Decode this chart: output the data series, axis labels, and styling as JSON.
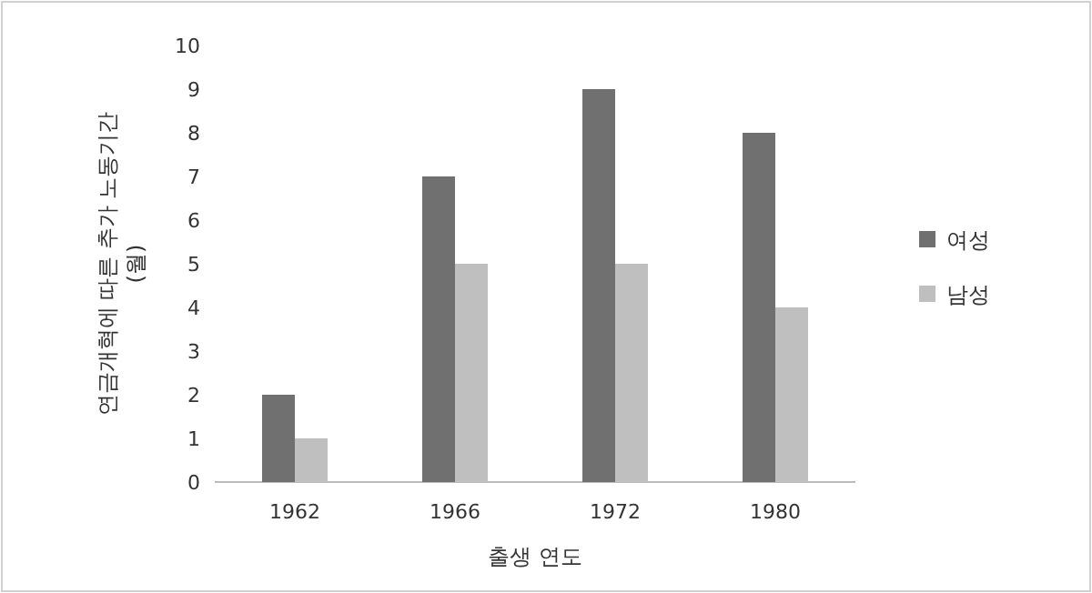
{
  "chart_data": {
    "type": "bar",
    "xlabel": "출생 연도",
    "ylabel": "연금개혁에 따른 추가 노동기간 (월)",
    "categories": [
      "1962",
      "1966",
      "1972",
      "1980"
    ],
    "series": [
      {
        "name": "여성",
        "color": "#707070",
        "values": [
          2,
          7,
          9,
          8
        ]
      },
      {
        "name": "남성",
        "color": "#bfbfbf",
        "values": [
          1,
          5,
          5,
          4
        ]
      }
    ],
    "ylim": [
      0,
      10
    ],
    "yticks": [
      0,
      1,
      2,
      3,
      4,
      5,
      6,
      7,
      8,
      9,
      10
    ],
    "grid": false,
    "legend": "right"
  }
}
